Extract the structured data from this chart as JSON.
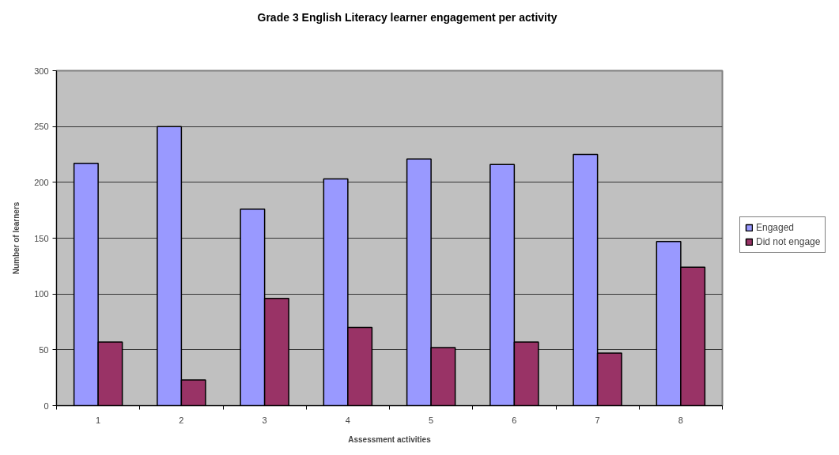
{
  "chart_data": {
    "type": "bar",
    "title": "Grade 3 English Literacy learner engagement per activity",
    "xlabel": "Assessment activities",
    "ylabel": "Number of learners",
    "categories": [
      "1",
      "2",
      "3",
      "4",
      "5",
      "6",
      "7",
      "8"
    ],
    "series": [
      {
        "name": "Engaged",
        "color": "#9999ff",
        "values": [
          217,
          250,
          176,
          203,
          221,
          216,
          225,
          147
        ]
      },
      {
        "name": "Did not engage",
        "color": "#993366",
        "values": [
          57,
          23,
          96,
          70,
          52,
          57,
          47,
          124
        ]
      }
    ],
    "ylim": [
      0,
      300
    ],
    "yticks": [
      0,
      50,
      100,
      150,
      200,
      250,
      300
    ],
    "grid": "y",
    "legend": "right"
  }
}
